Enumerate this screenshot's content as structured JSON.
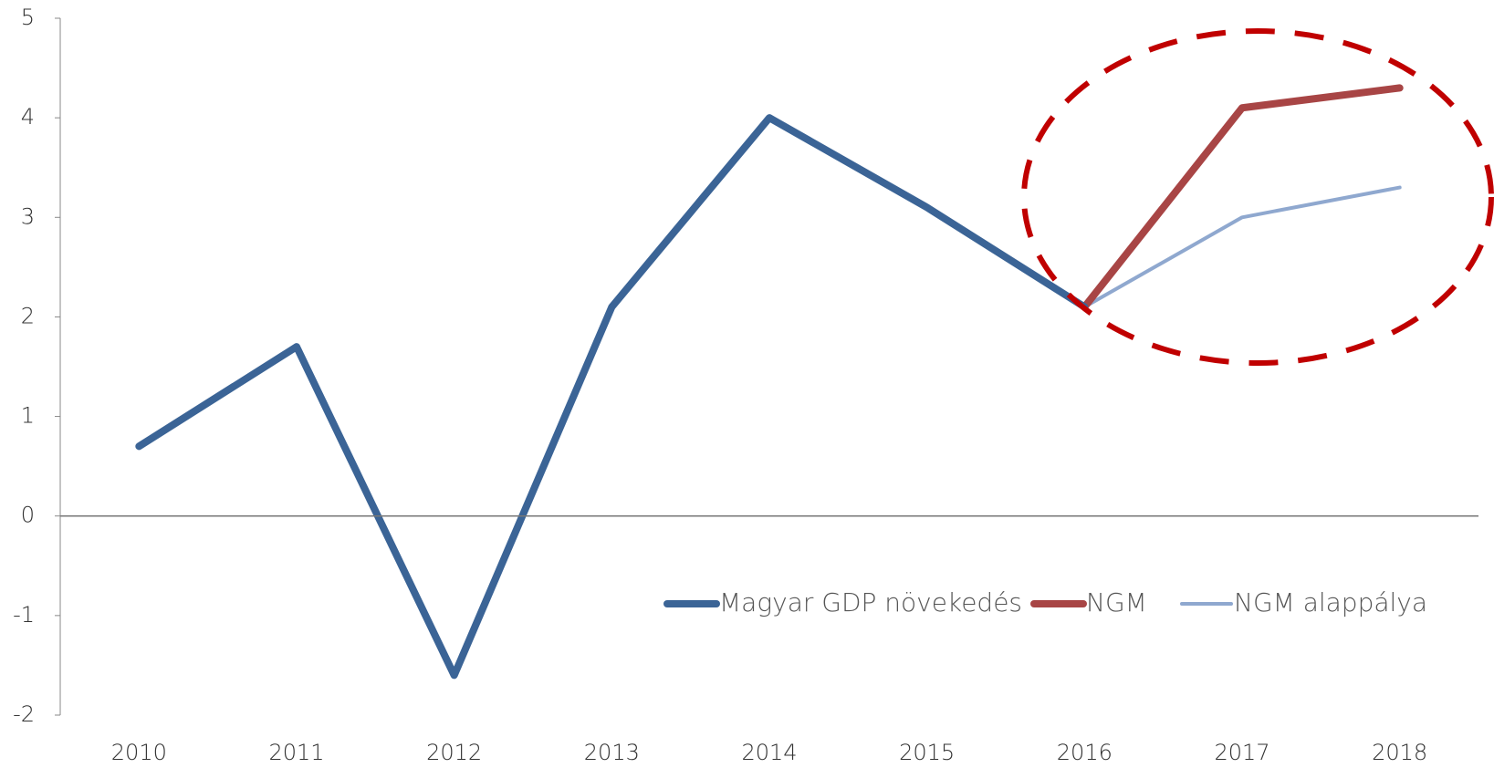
{
  "chart_data": {
    "type": "line",
    "categories": [
      "2010",
      "2011",
      "2012",
      "2013",
      "2014",
      "2015",
      "2016",
      "2017",
      "2018"
    ],
    "series": [
      {
        "name": "Magyar GDP növekedés",
        "color": "#3b6496",
        "width": 8,
        "values": [
          0.7,
          1.7,
          -1.6,
          2.1,
          4.0,
          3.1,
          2.1,
          null,
          null
        ]
      },
      {
        "name": "NGM",
        "color": "#a84545",
        "width": 8,
        "values": [
          null,
          null,
          null,
          null,
          null,
          null,
          2.1,
          4.1,
          4.3
        ]
      },
      {
        "name": "NGM alappálya",
        "color": "#8fa8cf",
        "width": 4,
        "values": [
          null,
          null,
          null,
          null,
          null,
          null,
          2.1,
          3.0,
          3.3
        ]
      }
    ],
    "ylim": [
      -2,
      5
    ],
    "yticks": [
      -2,
      -1,
      0,
      1,
      2,
      3,
      4,
      5
    ],
    "legend": "lower right"
  }
}
